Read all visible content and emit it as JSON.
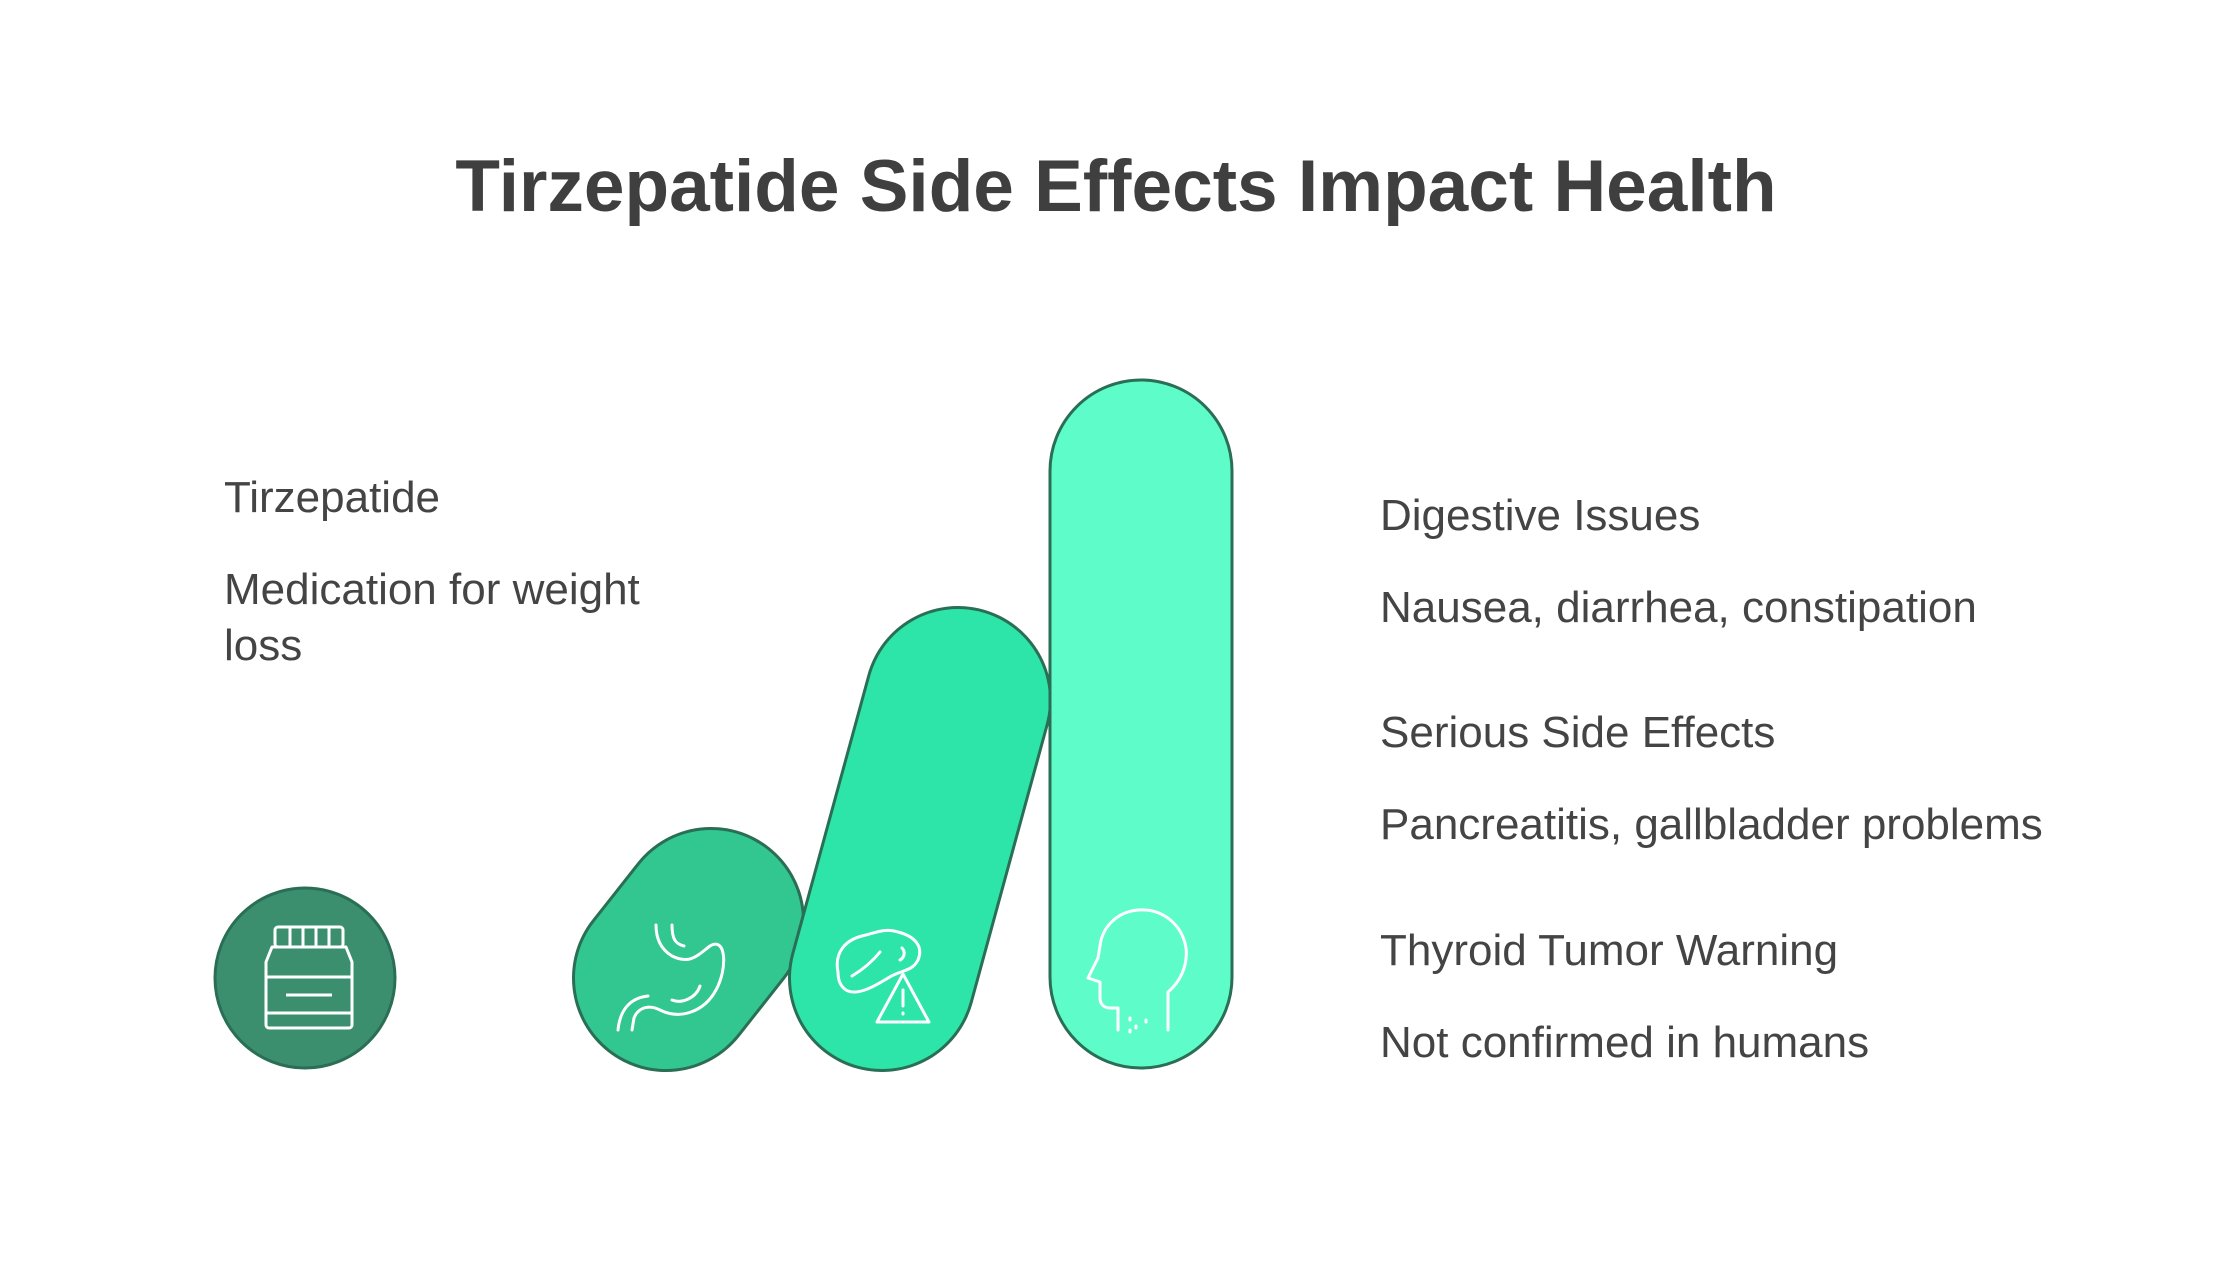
{
  "title": "Tirzepatide Side Effects Impact Health",
  "left": {
    "heading": "Tirzepatide",
    "description": "Medication for weight loss",
    "icon": "medicine-jar-icon"
  },
  "items": [
    {
      "heading": "Digestive Issues",
      "description": "Nausea, diarrhea, constipation",
      "icon": "stomach-icon"
    },
    {
      "heading": "Serious Side Effects",
      "description": "Pancreatitis, gallbladder problems",
      "icon": "organ-warning-icon"
    },
    {
      "heading": "Thyroid Tumor Warning",
      "description": "Not confirmed in humans",
      "icon": "head-thyroid-icon"
    }
  ],
  "colors": {
    "circle": "#3b8f6f",
    "pill_1": "#32c690",
    "pill_2": "#2de5a9",
    "pill_3": "#5efcc8",
    "outline": "#2a6e55",
    "text": "#444444"
  }
}
